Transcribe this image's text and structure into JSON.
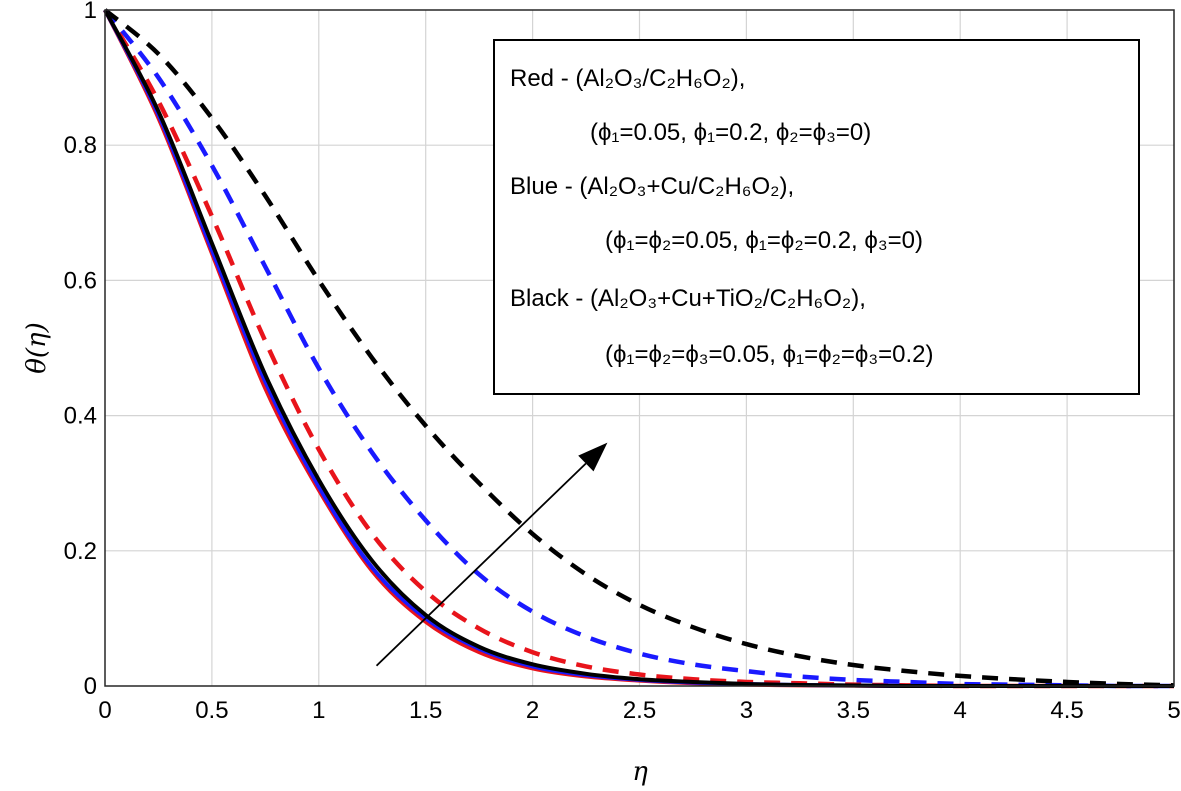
{
  "chart_data": {
    "type": "line",
    "xlabel": "η",
    "ylabel": "θ(η)",
    "xlim": [
      0,
      5
    ],
    "ylim": [
      0,
      1
    ],
    "x_ticks": [
      "0",
      "0.5",
      "1",
      "1.5",
      "2",
      "2.5",
      "3",
      "3.5",
      "4",
      "4.5",
      "5"
    ],
    "y_ticks": [
      "0",
      "0.2",
      "0.4",
      "0.6",
      "0.8",
      "1"
    ],
    "grid": true,
    "legend_position": "top-right",
    "legend_lines": [
      "Red - (Al₂O₃/C₂H₆O₂),",
      "(ϕ₁=0.05,  ϕ₁=0.2,  ϕ₂=ϕ₃=0)",
      "Blue - (Al₂O₃+Cu/C₂H₆O₂),",
      "(ϕ₁=ϕ₂=0.05,   ϕ₁=ϕ₂=0.2,  ϕ₃=0)",
      "Black - (Al₂O₃+Cu+TiO₂/C₂H₆O₂),",
      "(ϕ₁=ϕ₂=ϕ₃=0.05,   ϕ₁=ϕ₂=ϕ₃=0.2)"
    ],
    "x": [
      0,
      0.25,
      0.5,
      0.75,
      1,
      1.25,
      1.5,
      1.75,
      2,
      2.25,
      2.5,
      2.75,
      3,
      3.25,
      3.5,
      3.75,
      4,
      4.25,
      4.5,
      4.75,
      5
    ],
    "series": [
      {
        "color": "#e8141b",
        "dash": "solid",
        "values": [
          1,
          0.84,
          0.64,
          0.44,
          0.29,
          0.17,
          0.095,
          0.05,
          0.026,
          0.014,
          0.008,
          0.004,
          0.002,
          0.001,
          0.0005,
          0,
          0,
          0,
          0,
          0,
          0
        ]
      },
      {
        "color": "#1a1aff",
        "dash": "solid",
        "values": [
          1,
          0.845,
          0.645,
          0.45,
          0.295,
          0.175,
          0.1,
          0.055,
          0.029,
          0.016,
          0.009,
          0.005,
          0.003,
          0.0015,
          0.0007,
          0,
          0,
          0,
          0,
          0,
          0
        ]
      },
      {
        "color": "#000000",
        "dash": "solid",
        "values": [
          1,
          0.85,
          0.655,
          0.46,
          0.305,
          0.185,
          0.105,
          0.058,
          0.032,
          0.018,
          0.01,
          0.006,
          0.003,
          0.0015,
          0.0008,
          0,
          0,
          0,
          0,
          0,
          0
        ]
      },
      {
        "color": "#e8141b",
        "dash": "dashed",
        "values": [
          1,
          0.865,
          0.695,
          0.51,
          0.35,
          0.225,
          0.14,
          0.085,
          0.05,
          0.029,
          0.017,
          0.01,
          0.006,
          0.004,
          0.002,
          0.001,
          0,
          0,
          0,
          0,
          0
        ]
      },
      {
        "color": "#1a1aff",
        "dash": "dashed",
        "values": [
          1,
          0.9,
          0.77,
          0.62,
          0.47,
          0.345,
          0.245,
          0.165,
          0.11,
          0.073,
          0.048,
          0.032,
          0.022,
          0.014,
          0.009,
          0.006,
          0.003,
          0.002,
          0.001,
          0,
          0
        ]
      },
      {
        "color": "#000000",
        "dash": "dashed",
        "values": [
          1,
          0.935,
          0.84,
          0.725,
          0.6,
          0.485,
          0.385,
          0.3,
          0.225,
          0.165,
          0.12,
          0.087,
          0.062,
          0.044,
          0.031,
          0.022,
          0.015,
          0.01,
          0.006,
          0.003,
          0.001
        ]
      }
    ],
    "arrow": {
      "from": [
        1.27,
        0.03
      ],
      "to": [
        2.35,
        0.36
      ]
    }
  }
}
